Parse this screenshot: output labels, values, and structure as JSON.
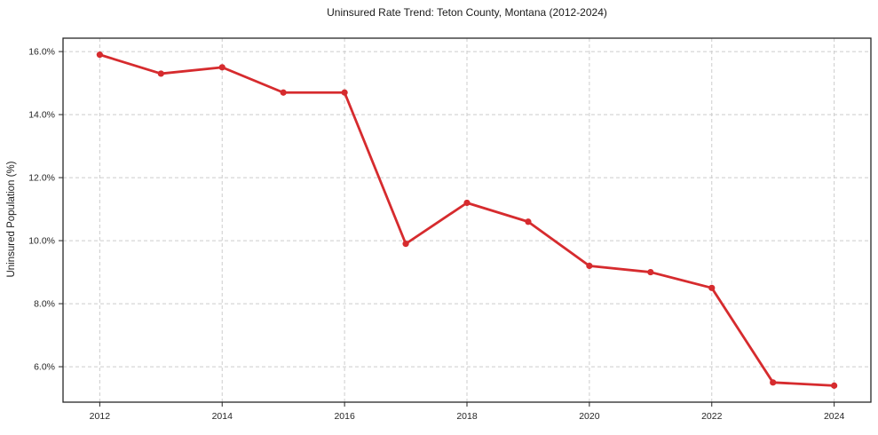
{
  "chart_data": {
    "type": "line",
    "title": "Uninsured Rate Trend: Teton County, Montana (2012-2024)",
    "xlabel": "",
    "ylabel": "Uninsured Population (%)",
    "x": [
      2012,
      2013,
      2014,
      2015,
      2016,
      2017,
      2018,
      2019,
      2020,
      2021,
      2022,
      2023,
      2024
    ],
    "values": [
      15.9,
      15.3,
      15.5,
      14.7,
      14.7,
      9.9,
      11.2,
      10.6,
      9.2,
      9.0,
      8.5,
      5.5,
      5.4
    ],
    "xlim": [
      2011.4,
      2024.6
    ],
    "ylim": [
      4.875,
      16.425
    ],
    "x_ticks": [
      {
        "value": 2012,
        "label": "2012"
      },
      {
        "value": 2014,
        "label": "2014"
      },
      {
        "value": 2016,
        "label": "2016"
      },
      {
        "value": 2018,
        "label": "2018"
      },
      {
        "value": 2020,
        "label": "2020"
      },
      {
        "value": 2022,
        "label": "2022"
      },
      {
        "value": 2024,
        "label": "2024"
      }
    ],
    "y_ticks": [
      {
        "value": 6,
        "label": "6.0%"
      },
      {
        "value": 8,
        "label": "8.0%"
      },
      {
        "value": 10,
        "label": "10.0%"
      },
      {
        "value": 12,
        "label": "12.0%"
      },
      {
        "value": 14,
        "label": "14.0%"
      },
      {
        "value": 16,
        "label": "16.0%"
      }
    ],
    "grid": true,
    "legend": "none",
    "colors": {
      "line": "#d62b2e",
      "marker": "#d62b2e",
      "grid": "#cccccc",
      "spine": "#262626",
      "text": "#1a1a1a",
      "background": "#ffffff"
    }
  }
}
